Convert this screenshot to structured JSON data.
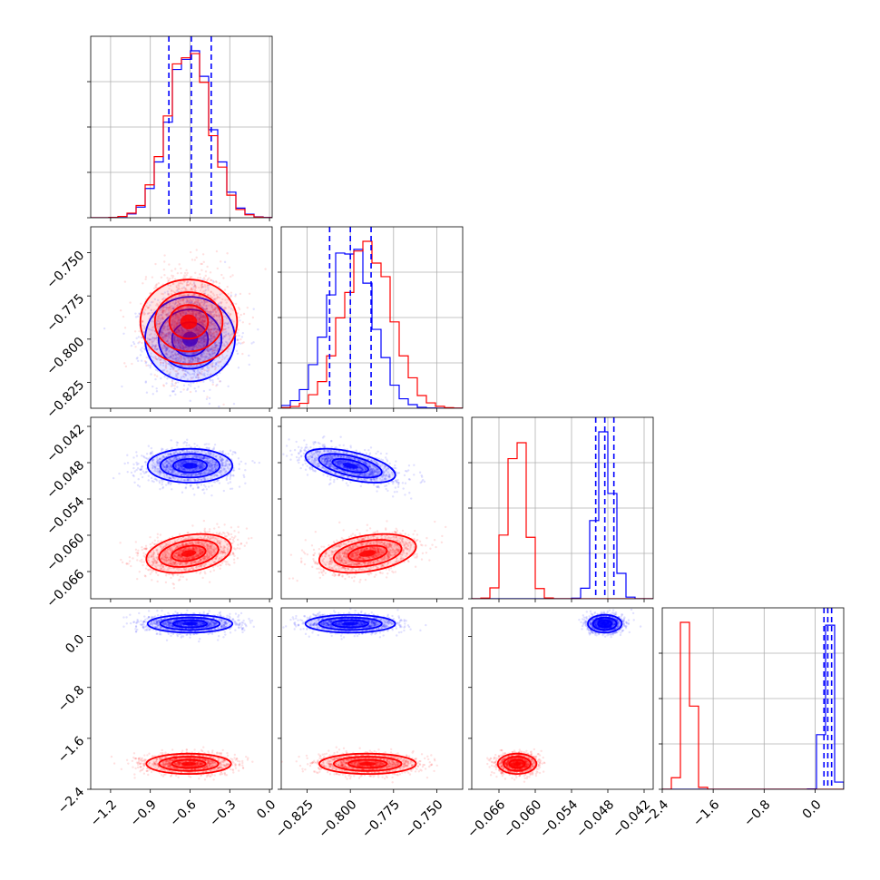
{
  "chart_data": {
    "type": "corner",
    "parameters": [
      {
        "range": [
          -1.35,
          0.02
        ],
        "ticks": [
          -1.2,
          -0.9,
          -0.6,
          -0.3,
          0.0
        ],
        "tick_labels": [
          "−1.2",
          "−0.9",
          "−0.6",
          "−0.3",
          "0.0"
        ]
      },
      {
        "range": [
          -0.84,
          -0.735
        ],
        "ticks": [
          -0.825,
          -0.8,
          -0.775,
          -0.75
        ],
        "tick_labels": [
          "−0.825",
          "−0.800",
          "−0.775",
          "−0.750"
        ]
      },
      {
        "range": [
          -0.0705,
          -0.0405
        ],
        "ticks": [
          -0.066,
          -0.06,
          -0.054,
          -0.048,
          -0.042
        ],
        "tick_labels": [
          "−0.066",
          "−0.060",
          "−0.054",
          "−0.048",
          "−0.042"
        ]
      },
      {
        "range": [
          -2.4,
          0.45
        ],
        "ticks": [
          -2.4,
          -1.6,
          -0.8,
          0.0
        ],
        "tick_labels": [
          "−2.4",
          "−1.6",
          "−0.8",
          "0.0"
        ]
      }
    ],
    "series": [
      {
        "color": "#0000ff",
        "mean": [
          -0.6,
          -0.8,
          -0.0485,
          0.2
        ],
        "std": [
          0.16,
          0.013,
          0.0014,
          0.07
        ],
        "corr": {
          "0-1": 0.0,
          "0-2": 0.0,
          "0-3": 0.0,
          "1-2": -0.55,
          "1-3": 0.0,
          "2-3": 0.0
        },
        "quantiles": [
          [
            -0.76,
            -0.59,
            -0.44
          ],
          [
            -0.812,
            -0.8,
            -0.788
          ],
          [
            -0.05,
            -0.0485,
            -0.047
          ],
          [
            0.14,
            0.2,
            0.26
          ]
        ]
      },
      {
        "color": "#ff0000",
        "mean": [
          -0.61,
          -0.79,
          -0.063,
          -2.0
        ],
        "std": [
          0.16,
          0.014,
          0.0016,
          0.08
        ],
        "corr": {
          "0-1": 0.0,
          "0-2": 0.3,
          "0-3": 0.0,
          "1-2": 0.35,
          "1-3": 0.0,
          "2-3": 0.0
        },
        "quantiles": null
      }
    ]
  }
}
